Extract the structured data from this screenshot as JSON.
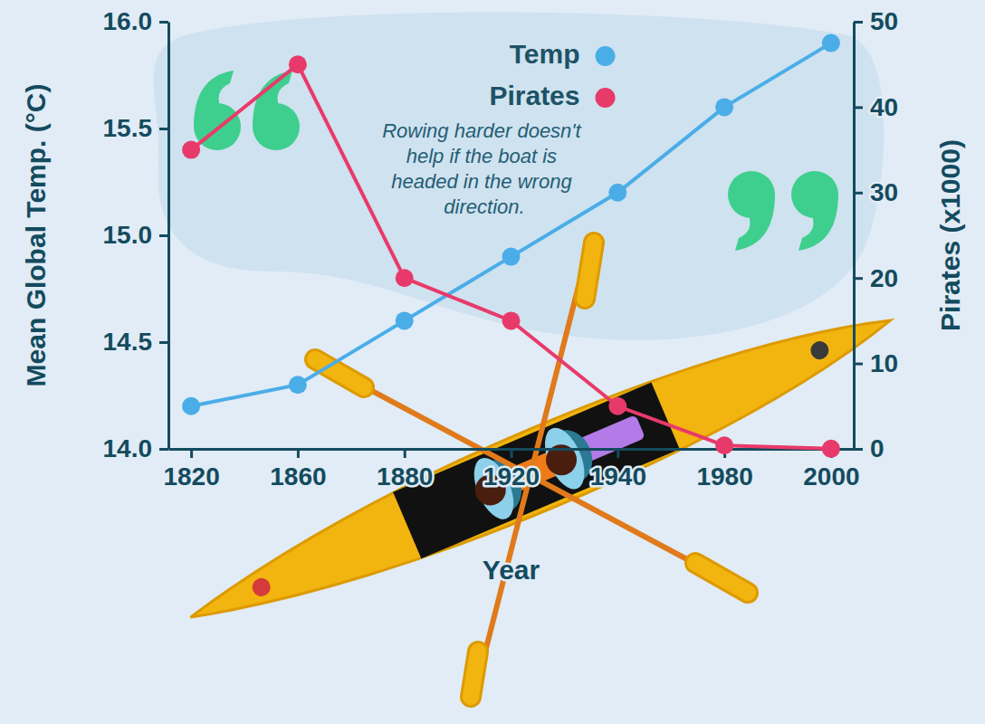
{
  "chart_data": {
    "type": "line",
    "annotation": "Rowing harder doesn't help if the boat is headed in the wrong direction.",
    "x_label": "Year",
    "y_label": "Mean Global Temp. (°C)",
    "y2_label": "Pirates (x1000)",
    "categories": [
      "1820",
      "1860",
      "1880",
      "1920",
      "1940",
      "1980",
      "2000"
    ],
    "series": [
      {
        "name": "Temp",
        "color": "#4aade8",
        "marker": "circle",
        "line_style": "solid",
        "values": [
          14.2,
          14.3,
          14.6,
          14.9,
          15.2,
          15.6,
          15.9
        ]
      },
      {
        "name": "Pirates",
        "color": "#e83a6a",
        "marker": "circle",
        "line_style": "solid",
        "axis": "y2",
        "values": [
          35,
          45,
          20,
          15,
          5,
          0.4,
          0.017
        ]
      }
    ],
    "ylim": [
      14,
      16
    ],
    "yticks": [
      {
        "value": 14,
        "label": "14.0"
      },
      14.5,
      {
        "value": 15,
        "label": "15.0"
      },
      15.5,
      {
        "value": 16,
        "label": "16.0"
      }
    ],
    "y2lim": [
      0,
      50
    ],
    "y2ticks": [
      0,
      10,
      20,
      30,
      40,
      50
    ],
    "legend": "top",
    "grid": false
  }
}
